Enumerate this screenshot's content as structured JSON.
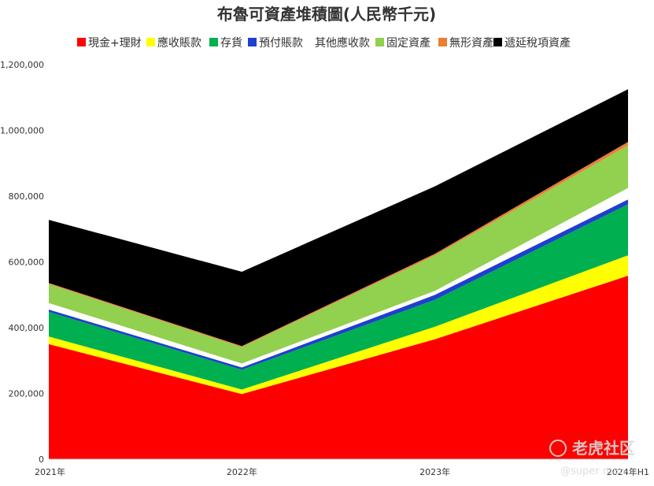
{
  "chart_data": {
    "type": "area",
    "stacked": true,
    "title": "布魯可資產堆積圖(人民幣千元)",
    "xlabel": "",
    "ylabel": "",
    "categories": [
      "2021年",
      "2022年",
      "2023年",
      "2024年H1"
    ],
    "ylim": [
      0,
      1200000
    ],
    "yticks": [
      0,
      200000,
      400000,
      600000,
      800000,
      1000000,
      1200000
    ],
    "ytick_labels": [
      "0",
      "200,000",
      "400,000",
      "600,000",
      "800,000",
      "1,000,000",
      "1,200,000"
    ],
    "legend_position": "top",
    "series": [
      {
        "name": "現金+理財",
        "color": "#ff0000",
        "values": [
          350000,
          198000,
          365000,
          558000
        ]
      },
      {
        "name": "應收賬款",
        "color": "#ffff00",
        "values": [
          23000,
          14000,
          38000,
          62000
        ]
      },
      {
        "name": "存貨",
        "color": "#00b050",
        "values": [
          75000,
          60000,
          82000,
          155000
        ]
      },
      {
        "name": "預付賬款",
        "color": "#1f3fcf",
        "values": [
          7000,
          7000,
          15000,
          15000
        ]
      },
      {
        "name": "其他應收款",
        "color": "#ffffff",
        "values": [
          20000,
          12000,
          12000,
          35000
        ]
      },
      {
        "name": "固定資產",
        "color": "#92d050",
        "values": [
          58000,
          50000,
          108000,
          130000
        ]
      },
      {
        "name": "無形資產",
        "color": "#ed7d31",
        "values": [
          3000,
          3000,
          5000,
          10000
        ]
      },
      {
        "name": "遞延稅項資產",
        "color": "#000000",
        "values": [
          192000,
          226000,
          205000,
          160000
        ]
      }
    ]
  },
  "watermark": {
    "brand": "老虎社区",
    "user": "@super man"
  }
}
